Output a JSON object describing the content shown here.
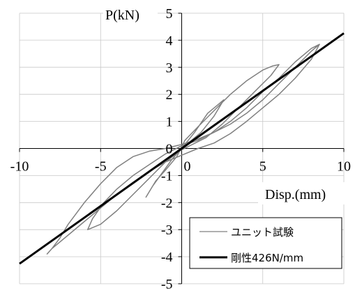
{
  "chart_data": {
    "type": "line",
    "xlabel": "Disp.(mm)",
    "ylabel": "P(kN)",
    "xlim": [
      -10,
      10
    ],
    "ylim": [
      -5,
      5
    ],
    "x_ticks": [
      -10,
      -5,
      0,
      5,
      10
    ],
    "y_ticks": [
      -5,
      -4,
      -3,
      -2,
      -1,
      0,
      1,
      2,
      3,
      4,
      5
    ],
    "grid": "horizontal",
    "legend_position": "bottom-right",
    "series": [
      {
        "name": "ユニット試験",
        "color": "#808080",
        "style": "thin",
        "x": [
          0,
          0.8,
          1.6,
          2.2,
          2.6,
          2.0,
          1.2,
          0.6,
          0.0,
          -0.6,
          -1.2,
          -1.8,
          -2.2,
          -1.6,
          -1.0,
          -0.3,
          0.2,
          1.0,
          2.0,
          3.0,
          4.0,
          4.5,
          5.0,
          5.6,
          6.0,
          5.5,
          4.5,
          3.5,
          2.5,
          1.5,
          0.5,
          0.0,
          -1.0,
          -2.0,
          -3.0,
          -4.0,
          -5.0,
          -5.8,
          -5.5,
          -4.8,
          -4.0,
          -3.0,
          -2.0,
          -1.0,
          0.0,
          1.0,
          2.0,
          3.0,
          4.0,
          5.0,
          6.0,
          7.0,
          8.0,
          8.5,
          8.0,
          7.0,
          6.0,
          5.0,
          4.0,
          3.0,
          2.0,
          1.0,
          0.0,
          -1.0,
          -2.0,
          -3.0,
          -4.0,
          -5.0,
          -6.0,
          -7.0,
          -8.0,
          -8.3,
          -8.0,
          -7.5,
          -7.0,
          -6.0,
          -5.0,
          -4.0,
          -3.0,
          -2.0,
          -1.0,
          0.0,
          1.0,
          2.0,
          3.0,
          4.0,
          5.0,
          6.0,
          7.0,
          8.0,
          8.5
        ],
        "y": [
          0,
          0.6,
          1.3,
          1.6,
          1.8,
          1.2,
          0.6,
          0.3,
          0.0,
          -0.4,
          -0.9,
          -1.4,
          -1.8,
          -1.2,
          -0.8,
          -0.3,
          0.3,
          0.8,
          1.4,
          2.0,
          2.5,
          2.7,
          2.9,
          3.05,
          3.1,
          2.7,
          2.1,
          1.5,
          0.9,
          0.4,
          0.1,
          -0.05,
          -0.5,
          -1.1,
          -1.7,
          -2.3,
          -2.8,
          -3.0,
          -2.6,
          -2.0,
          -1.5,
          -1.0,
          -0.6,
          -0.2,
          0.1,
          0.3,
          0.6,
          1.0,
          1.5,
          2.1,
          2.6,
          3.2,
          3.7,
          3.85,
          3.3,
          2.6,
          2.0,
          1.5,
          1.0,
          0.55,
          0.2,
          0.0,
          -0.25,
          -0.5,
          -0.85,
          -1.25,
          -1.7,
          -2.2,
          -2.7,
          -3.2,
          -3.7,
          -3.9,
          -3.7,
          -3.3,
          -2.8,
          -2.0,
          -1.3,
          -0.7,
          -0.3,
          -0.1,
          0.0,
          0.15,
          0.35,
          0.6,
          0.9,
          1.3,
          1.8,
          2.4,
          3.0,
          3.6,
          3.85
        ]
      },
      {
        "name": "剛性426N/mm",
        "color": "#000000",
        "style": "thick",
        "x": [
          -10,
          10
        ],
        "y": [
          -4.26,
          4.26
        ]
      }
    ]
  }
}
